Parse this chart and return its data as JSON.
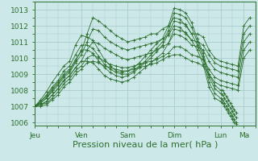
{
  "bg_color": "#cce8e8",
  "grid_color": "#aacccc",
  "line_color": "#2d6e2d",
  "xlabel": "Pression niveau de la mer( hPa )",
  "xlabel_fontsize": 8,
  "tick_fontsize": 6.5,
  "ylim": [
    1005.8,
    1013.5
  ],
  "yticks": [
    1006,
    1007,
    1008,
    1009,
    1010,
    1011,
    1012,
    1013
  ],
  "day_labels": [
    "Jeu",
    "Ven",
    "Sam",
    "Dim",
    "Lun",
    "Ma"
  ],
  "day_positions": [
    0,
    24,
    48,
    72,
    96,
    108
  ],
  "total_hours": 114,
  "lines": [
    {
      "x": [
        0,
        3,
        6,
        9,
        12,
        15,
        18,
        21,
        24,
        27,
        30,
        33,
        36,
        39,
        42,
        45,
        48,
        51,
        54,
        57,
        60,
        63,
        66,
        69,
        72,
        75,
        78,
        81,
        84,
        87,
        90,
        93,
        96,
        97,
        98,
        99,
        100,
        101,
        102,
        103,
        104
      ],
      "y": [
        1007.0,
        1007.4,
        1007.9,
        1008.5,
        1009.0,
        1009.5,
        1009.8,
        1010.8,
        1011.4,
        1011.3,
        1011.1,
        1010.5,
        1009.9,
        1009.5,
        1009.2,
        1009.1,
        1009.2,
        1009.4,
        1009.7,
        1010.1,
        1010.5,
        1010.9,
        1011.2,
        1012.0,
        1013.1,
        1013.0,
        1012.8,
        1012.2,
        1011.2,
        1010.3,
        1009.0,
        1008.3,
        1008.0,
        1008.0,
        1007.8,
        1007.6,
        1007.4,
        1007.2,
        1007.0,
        1006.8,
        1006.6
      ]
    },
    {
      "x": [
        0,
        3,
        6,
        9,
        12,
        15,
        18,
        21,
        24,
        27,
        30,
        33,
        36,
        39,
        42,
        45,
        48,
        51,
        54,
        57,
        60,
        63,
        66,
        69,
        72,
        75,
        78,
        81,
        84,
        87,
        90,
        93,
        96,
        97,
        98,
        99,
        100,
        101,
        102,
        103,
        104
      ],
      "y": [
        1007.0,
        1007.3,
        1007.7,
        1008.2,
        1008.6,
        1009.2,
        1009.5,
        1010.2,
        1010.8,
        1010.8,
        1010.6,
        1010.1,
        1009.6,
        1009.3,
        1009.1,
        1009.0,
        1009.0,
        1009.2,
        1009.5,
        1009.8,
        1010.2,
        1010.6,
        1011.0,
        1011.7,
        1012.8,
        1012.7,
        1012.5,
        1011.9,
        1011.0,
        1010.1,
        1008.8,
        1008.1,
        1007.8,
        1007.7,
        1007.5,
        1007.3,
        1007.1,
        1006.9,
        1006.7,
        1006.5,
        1006.3
      ]
    },
    {
      "x": [
        0,
        3,
        6,
        9,
        12,
        15,
        18,
        21,
        24,
        27,
        30,
        33,
        36,
        39,
        42,
        45,
        48,
        51,
        54,
        57,
        60,
        63,
        66,
        69,
        72,
        75,
        78,
        81,
        84,
        87,
        90,
        93,
        96,
        97,
        98,
        99,
        100,
        101,
        102,
        103,
        104
      ],
      "y": [
        1007.0,
        1007.2,
        1007.5,
        1008.0,
        1008.4,
        1008.9,
        1009.2,
        1009.8,
        1010.5,
        1010.5,
        1010.3,
        1009.8,
        1009.4,
        1009.1,
        1008.9,
        1008.8,
        1008.9,
        1009.1,
        1009.4,
        1009.7,
        1010.0,
        1010.4,
        1010.8,
        1011.5,
        1012.3,
        1012.2,
        1012.1,
        1011.5,
        1010.8,
        1009.9,
        1008.5,
        1007.8,
        1007.5,
        1007.4,
        1007.2,
        1007.0,
        1006.8,
        1006.6,
        1006.4,
        1006.2,
        1006.0
      ]
    },
    {
      "x": [
        0,
        3,
        6,
        9,
        12,
        15,
        18,
        21,
        24,
        27,
        30,
        33,
        36,
        39,
        42,
        45,
        48,
        51,
        54,
        57,
        60,
        63,
        66,
        69,
        72,
        75,
        78,
        81,
        84,
        87,
        90,
        93,
        96,
        97,
        98,
        99,
        100,
        101,
        102,
        103,
        104
      ],
      "y": [
        1007.0,
        1007.1,
        1007.3,
        1007.7,
        1008.1,
        1008.6,
        1008.9,
        1009.4,
        1009.8,
        1009.8,
        1009.7,
        1009.3,
        1008.9,
        1008.7,
        1008.6,
        1008.5,
        1008.6,
        1008.8,
        1009.1,
        1009.4,
        1009.7,
        1010.0,
        1010.3,
        1010.9,
        1011.8,
        1011.7,
        1011.6,
        1011.1,
        1010.5,
        1009.6,
        1008.2,
        1007.5,
        1007.3,
        1007.2,
        1007.0,
        1006.8,
        1006.6,
        1006.4,
        1006.2,
        1006.0,
        1005.9
      ]
    },
    {
      "x": [
        0,
        3,
        6,
        9,
        12,
        15,
        18,
        21,
        24,
        27,
        30,
        33,
        36,
        39,
        42,
        45,
        48,
        51,
        54,
        57,
        60,
        63,
        66,
        69,
        72,
        75,
        78,
        81,
        84,
        87,
        90,
        93,
        96,
        99,
        102,
        105,
        108,
        111
      ],
      "y": [
        1007.0,
        1007.3,
        1007.6,
        1008.1,
        1008.5,
        1009.0,
        1009.3,
        1009.9,
        1010.4,
        1011.5,
        1012.5,
        1012.3,
        1012.0,
        1011.7,
        1011.4,
        1011.2,
        1011.0,
        1011.1,
        1011.2,
        1011.3,
        1011.5,
        1011.5,
        1011.8,
        1012.0,
        1012.5,
        1012.4,
        1012.0,
        1011.5,
        1011.5,
        1011.3,
        1010.5,
        1010.0,
        1009.8,
        1009.7,
        1009.6,
        1009.5,
        1012.0,
        1012.5
      ]
    },
    {
      "x": [
        0,
        3,
        6,
        9,
        12,
        15,
        18,
        21,
        24,
        27,
        30,
        33,
        36,
        39,
        42,
        45,
        48,
        51,
        54,
        57,
        60,
        63,
        66,
        69,
        72,
        75,
        78,
        81,
        84,
        87,
        90,
        93,
        96,
        99,
        102,
        105,
        108,
        111
      ],
      "y": [
        1007.0,
        1007.2,
        1007.5,
        1007.9,
        1008.3,
        1008.8,
        1009.1,
        1009.7,
        1010.2,
        1011.0,
        1011.8,
        1011.7,
        1011.3,
        1011.0,
        1010.8,
        1010.6,
        1010.5,
        1010.6,
        1010.7,
        1010.8,
        1010.9,
        1011.0,
        1011.2,
        1011.4,
        1012.0,
        1011.9,
        1011.5,
        1011.1,
        1011.0,
        1010.8,
        1010.2,
        1009.7,
        1009.5,
        1009.4,
        1009.3,
        1009.2,
        1011.5,
        1012.0
      ]
    },
    {
      "x": [
        0,
        3,
        6,
        9,
        12,
        15,
        18,
        21,
        24,
        27,
        30,
        33,
        36,
        39,
        42,
        45,
        48,
        51,
        54,
        57,
        60,
        63,
        66,
        69,
        72,
        75,
        78,
        81,
        84,
        87,
        90,
        93,
        96,
        99,
        102,
        105,
        108,
        111
      ],
      "y": [
        1007.0,
        1007.1,
        1007.3,
        1007.7,
        1008.1,
        1008.6,
        1008.9,
        1009.4,
        1009.8,
        1010.5,
        1011.0,
        1010.9,
        1010.6,
        1010.4,
        1010.2,
        1010.0,
        1009.9,
        1010.0,
        1010.1,
        1010.2,
        1010.3,
        1010.5,
        1010.7,
        1010.9,
        1011.5,
        1011.4,
        1011.2,
        1010.8,
        1010.7,
        1010.5,
        1009.8,
        1009.3,
        1009.1,
        1009.0,
        1008.9,
        1008.8,
        1011.0,
        1011.5
      ]
    },
    {
      "x": [
        0,
        3,
        6,
        9,
        12,
        15,
        18,
        21,
        24,
        27,
        30,
        33,
        36,
        39,
        42,
        45,
        48,
        51,
        54,
        57,
        60,
        63,
        66,
        69,
        72,
        75,
        78,
        81,
        84,
        87,
        90,
        93,
        96,
        99,
        102,
        105,
        108,
        111
      ],
      "y": [
        1007.0,
        1007.1,
        1007.2,
        1007.5,
        1007.9,
        1008.4,
        1008.7,
        1009.2,
        1009.5,
        1010.0,
        1010.2,
        1010.0,
        1009.8,
        1009.6,
        1009.5,
        1009.4,
        1009.4,
        1009.5,
        1009.6,
        1009.7,
        1009.8,
        1009.9,
        1010.1,
        1010.3,
        1010.7,
        1010.7,
        1010.5,
        1010.2,
        1010.1,
        1009.9,
        1009.3,
        1008.8,
        1008.6,
        1008.5,
        1008.4,
        1008.3,
        1010.5,
        1011.0
      ]
    },
    {
      "x": [
        0,
        3,
        6,
        9,
        12,
        15,
        18,
        21,
        24,
        27,
        30,
        33,
        36,
        39,
        42,
        45,
        48,
        51,
        54,
        57,
        60,
        63,
        66,
        69,
        72,
        75,
        78,
        81,
        84,
        87,
        90,
        93,
        96,
        99,
        102,
        105,
        108,
        111
      ],
      "y": [
        1007.0,
        1007.0,
        1007.1,
        1007.4,
        1007.7,
        1008.2,
        1008.5,
        1009.0,
        1009.3,
        1009.7,
        1009.8,
        1009.7,
        1009.5,
        1009.4,
        1009.3,
        1009.2,
        1009.2,
        1009.3,
        1009.4,
        1009.5,
        1009.6,
        1009.7,
        1009.9,
        1010.1,
        1010.2,
        1010.2,
        1010.0,
        1009.8,
        1009.7,
        1009.5,
        1009.0,
        1008.5,
        1008.3,
        1008.2,
        1008.1,
        1008.0,
        1010.0,
        1010.5
      ]
    }
  ]
}
